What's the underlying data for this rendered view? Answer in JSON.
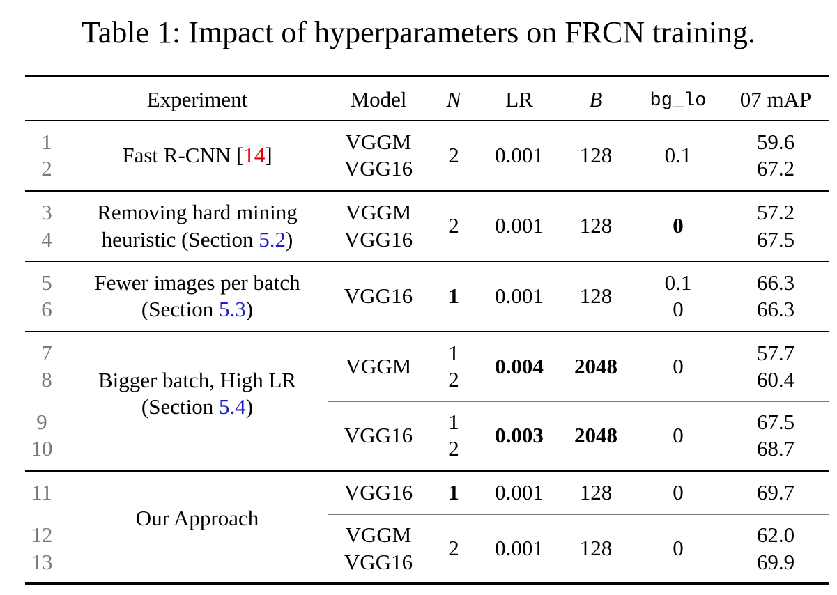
{
  "caption": "Table 1: Impact of hyperparameters on FRCN training.",
  "header": {
    "experiment": "Experiment",
    "model": "Model",
    "n": "N",
    "lr": "LR",
    "b": "B",
    "bg_lo": "bg_lo",
    "map": "07 mAP"
  },
  "groups": [
    {
      "experiment_line1": "Fast R-CNN [",
      "experiment_ref": "14",
      "experiment_line1_end": "]",
      "rows": [
        "1",
        "2"
      ],
      "models": [
        "VGGM",
        "VGG16"
      ],
      "n": "2",
      "lr": "0.001",
      "b": "128",
      "bg_lo": "0.1",
      "map": [
        "59.6",
        "67.2"
      ]
    },
    {
      "experiment_line1": "Removing hard mining",
      "experiment_line2": "heuristic (Section ",
      "experiment_ref": "5.2",
      "experiment_line2_end": ")",
      "rows": [
        "3",
        "4"
      ],
      "models": [
        "VGGM",
        "VGG16"
      ],
      "n": "2",
      "lr": "0.001",
      "b": "128",
      "bg_lo": "0",
      "map": [
        "57.2",
        "67.5"
      ]
    },
    {
      "experiment_line1": "Fewer images per batch",
      "experiment_line2": "(Section ",
      "experiment_ref": "5.3",
      "experiment_line2_end": ")",
      "rows": [
        "5",
        "6"
      ],
      "model": "VGG16",
      "n": "1",
      "lr": "0.001",
      "b": "128",
      "bg_lo": [
        "0.1",
        "0"
      ],
      "map": [
        "66.3",
        "66.3"
      ]
    },
    {
      "experiment_line1": "Bigger batch, High LR",
      "experiment_line2": "(Section ",
      "experiment_ref": "5.4",
      "experiment_line2_end": ")",
      "subgroups": [
        {
          "rows": [
            "7",
            "8"
          ],
          "model": "VGGM",
          "n": [
            "1",
            "2"
          ],
          "lr": "0.004",
          "b": "2048",
          "bg_lo": "0",
          "map": [
            "57.7",
            "60.4"
          ]
        },
        {
          "rows": [
            "9",
            "10"
          ],
          "model": "VGG16",
          "n": [
            "1",
            "2"
          ],
          "lr": "0.003",
          "b": "2048",
          "bg_lo": "0",
          "map": [
            "67.5",
            "68.7"
          ]
        }
      ]
    },
    {
      "experiment_line1": "Our Approach",
      "subgroups": [
        {
          "rows": [
            "11"
          ],
          "model": "VGG16",
          "n": "1",
          "lr": "0.001",
          "b": "128",
          "bg_lo": "0",
          "map": "69.7"
        },
        {
          "rows": [
            "12",
            "13"
          ],
          "models": [
            "VGGM",
            "VGG16"
          ],
          "n": "2",
          "lr": "0.001",
          "b": "128",
          "bg_lo": "0",
          "map": [
            "62.0",
            "69.9"
          ]
        }
      ]
    }
  ]
}
